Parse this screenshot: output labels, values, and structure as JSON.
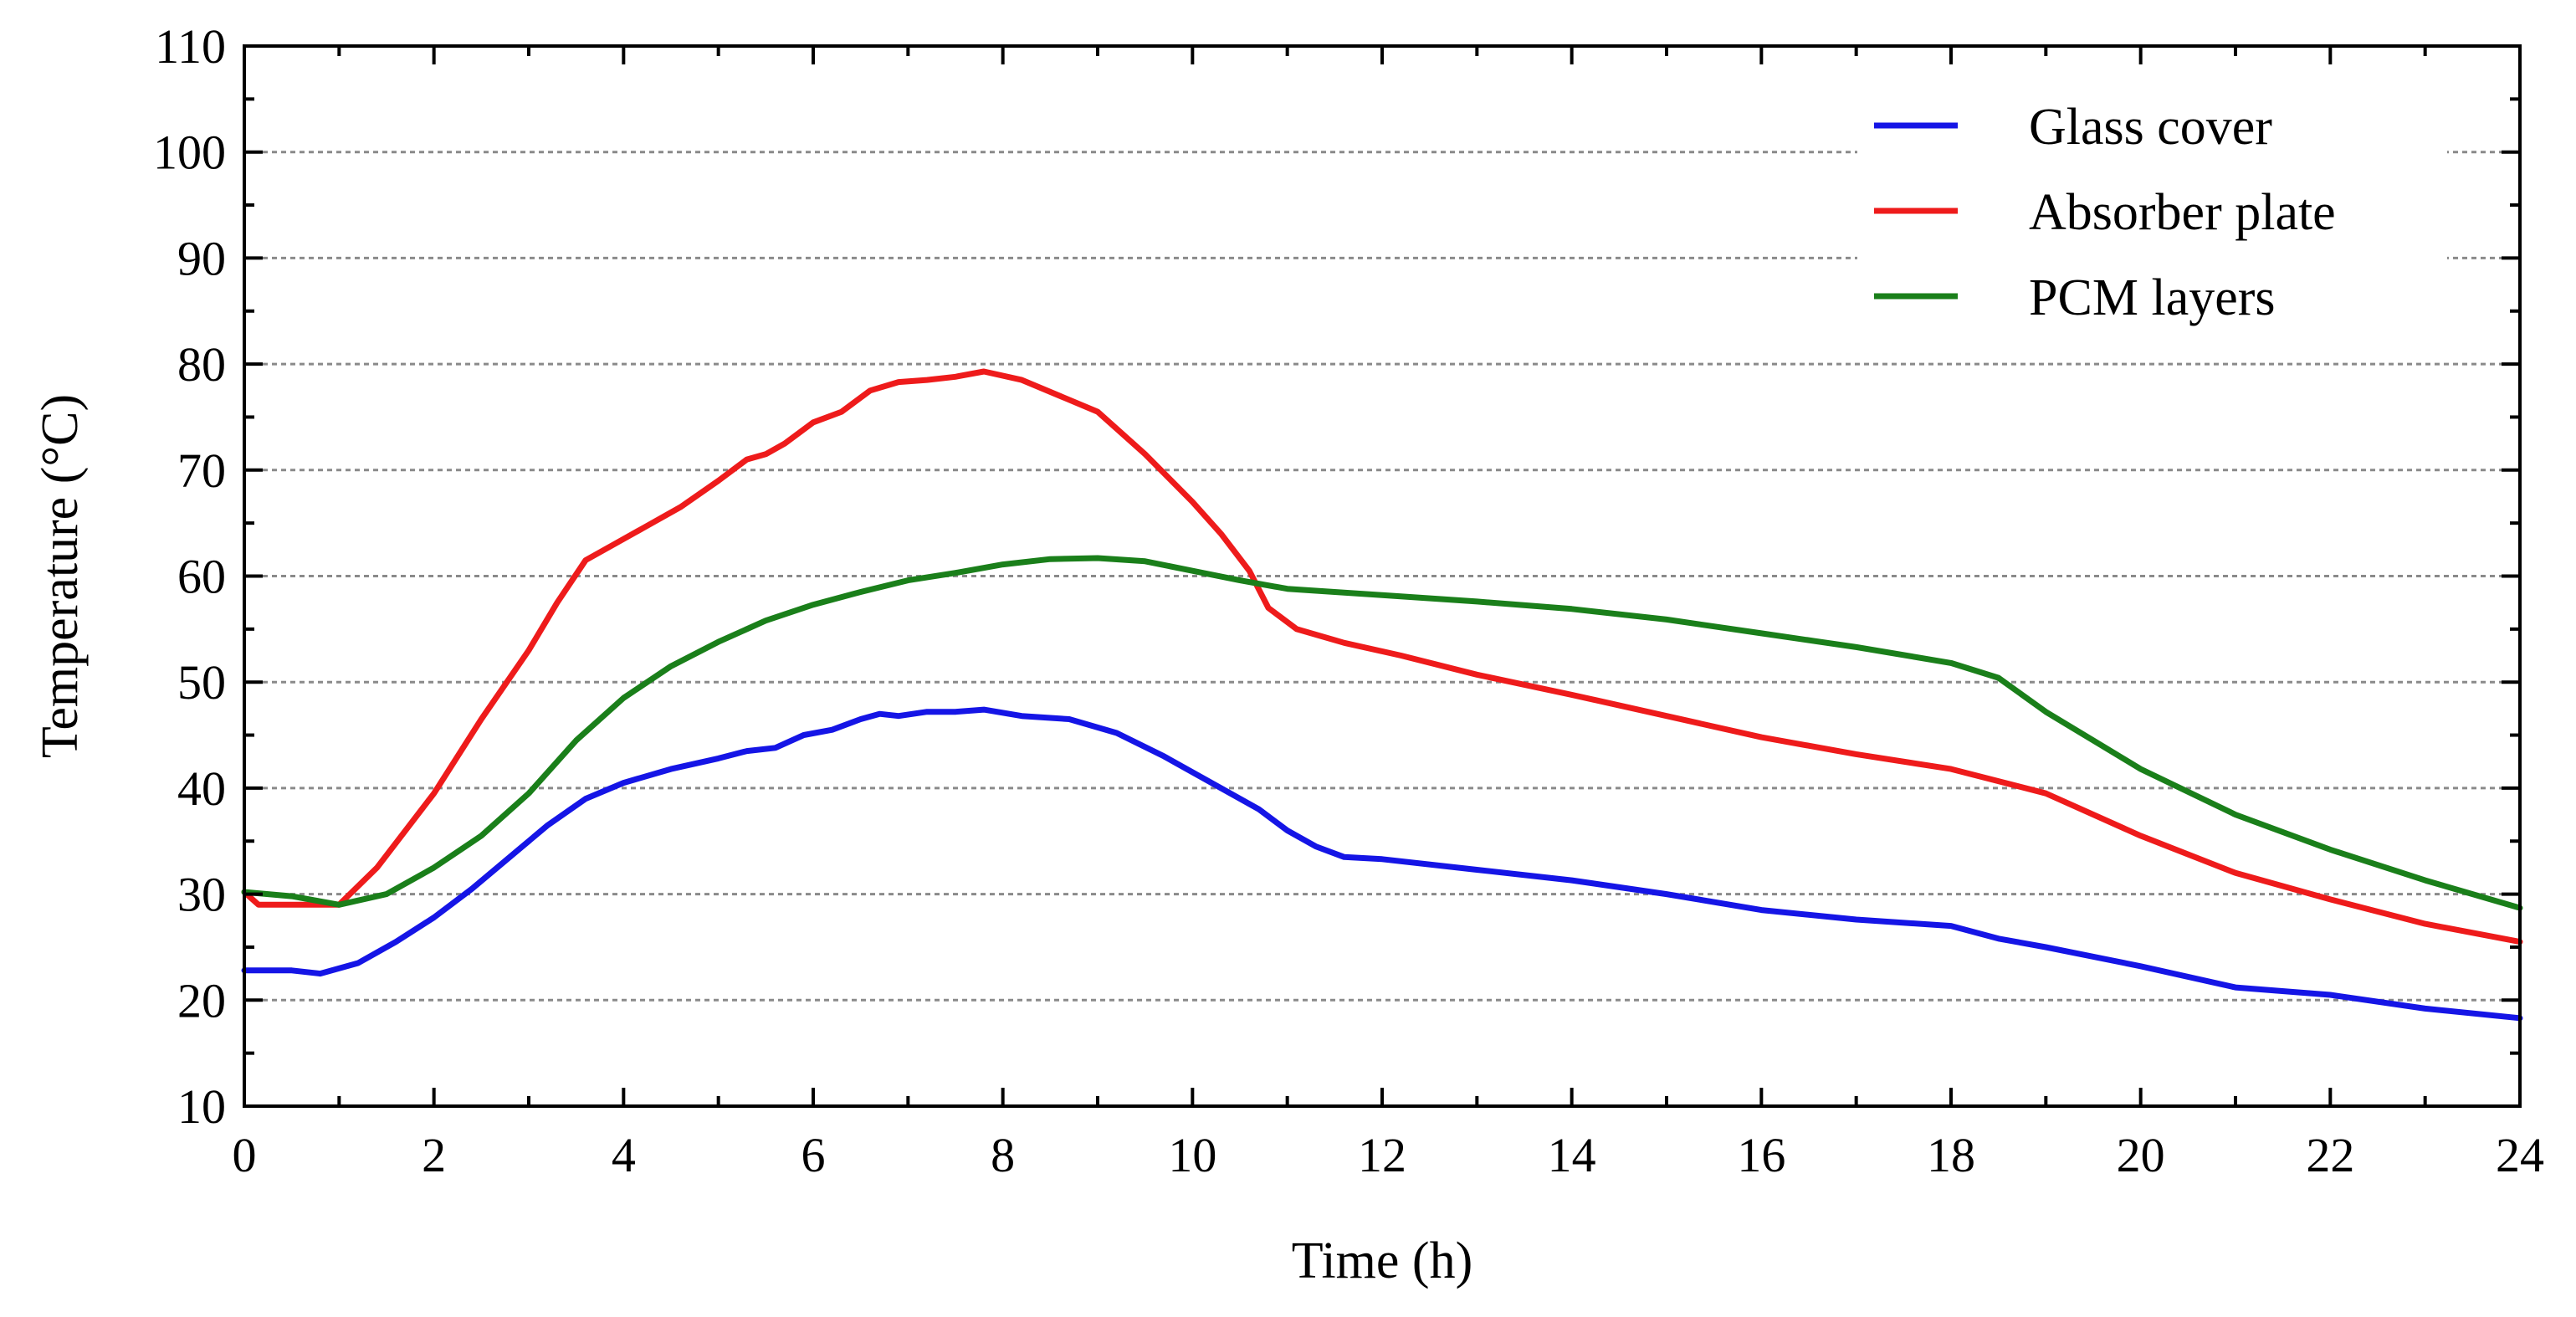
{
  "chart_data": {
    "type": "line",
    "title": "",
    "xlabel": "Time (h)",
    "ylabel": "Temperature (°C)",
    "xlim": [
      0,
      24
    ],
    "ylim": [
      10,
      110
    ],
    "xticks": [
      0,
      2,
      4,
      6,
      8,
      10,
      12,
      14,
      16,
      18,
      20,
      22,
      24
    ],
    "yticks": [
      10,
      20,
      30,
      40,
      50,
      60,
      70,
      80,
      90,
      100,
      110
    ],
    "grid": "horizontal dashed",
    "legend_position": "top-right",
    "series": [
      {
        "name": "Glass cover",
        "color": "#1515e6",
        "x": [
          0,
          0.5,
          0.8,
          1.2,
          1.6,
          2,
          2.4,
          2.8,
          3.2,
          3.6,
          4,
          4.5,
          5,
          5.3,
          5.6,
          5.9,
          6.2,
          6.5,
          6.7,
          6.9,
          7.2,
          7.5,
          7.8,
          8.2,
          8.7,
          9.2,
          9.7,
          10.2,
          10.7,
          11,
          11.3,
          11.6,
          12,
          13,
          14,
          15,
          16,
          17,
          18,
          18.5,
          19,
          20,
          21,
          22,
          23,
          24
        ],
        "y": [
          22.8,
          22.8,
          22.5,
          23.5,
          25.5,
          27.8,
          30.5,
          33.5,
          36.5,
          39,
          40.5,
          41.8,
          42.8,
          43.5,
          43.8,
          45,
          45.5,
          46.5,
          47,
          46.8,
          47.2,
          47.2,
          47.4,
          46.8,
          46.5,
          45.2,
          43,
          40.5,
          38,
          36,
          34.5,
          33.5,
          33.3,
          32.3,
          31.3,
          30,
          28.5,
          27.6,
          27,
          25.8,
          25,
          23.2,
          21.2,
          20.5,
          19.2,
          18.3
        ]
      },
      {
        "name": "Absorber plate",
        "color": "#ee1b1b",
        "x": [
          0,
          0.15,
          0.5,
          1,
          1.4,
          2,
          2.5,
          3,
          3.3,
          3.6,
          3.9,
          4.2,
          4.6,
          5,
          5.3,
          5.5,
          5.7,
          6,
          6.3,
          6.6,
          6.9,
          7.2,
          7.5,
          7.8,
          8.2,
          8.6,
          9,
          9.5,
          10,
          10.3,
          10.6,
          10.8,
          11.1,
          11.6,
          12.2,
          13,
          14,
          15,
          16,
          17,
          18,
          19,
          20,
          21,
          22,
          23,
          24
        ],
        "y": [
          30.2,
          29,
          29,
          29,
          32.5,
          39.5,
          46.5,
          53,
          57.5,
          61.5,
          63,
          64.5,
          66.5,
          69,
          71,
          71.5,
          72.5,
          74.5,
          75.5,
          77.5,
          78.3,
          78.5,
          78.8,
          79.3,
          78.5,
          77,
          75.5,
          71.5,
          67,
          64,
          60.5,
          57,
          55,
          53.7,
          52.5,
          50.7,
          48.8,
          46.8,
          44.8,
          43.2,
          41.8,
          39.5,
          35.5,
          32,
          29.5,
          27.2,
          25.5
        ]
      },
      {
        "name": "PCM layers",
        "color": "#1a7f1a",
        "x": [
          0,
          0.5,
          1,
          1.5,
          2,
          2.5,
          3,
          3.5,
          4,
          4.5,
          5,
          5.5,
          6,
          6.5,
          7,
          7.5,
          8,
          8.5,
          9,
          9.5,
          10,
          10.5,
          11,
          12,
          13,
          14,
          15,
          16,
          17,
          18,
          18.5,
          19,
          20,
          21,
          22,
          23,
          24
        ],
        "y": [
          30.2,
          29.8,
          29,
          30,
          32.5,
          35.5,
          39.5,
          44.5,
          48.5,
          51.5,
          53.8,
          55.8,
          57.3,
          58.5,
          59.6,
          60.3,
          61.1,
          61.6,
          61.7,
          61.4,
          60.5,
          59.6,
          58.8,
          58.2,
          57.6,
          56.9,
          55.9,
          54.6,
          53.3,
          51.8,
          50.4,
          47.2,
          41.8,
          37.5,
          34.2,
          31.3,
          28.7
        ]
      }
    ]
  }
}
